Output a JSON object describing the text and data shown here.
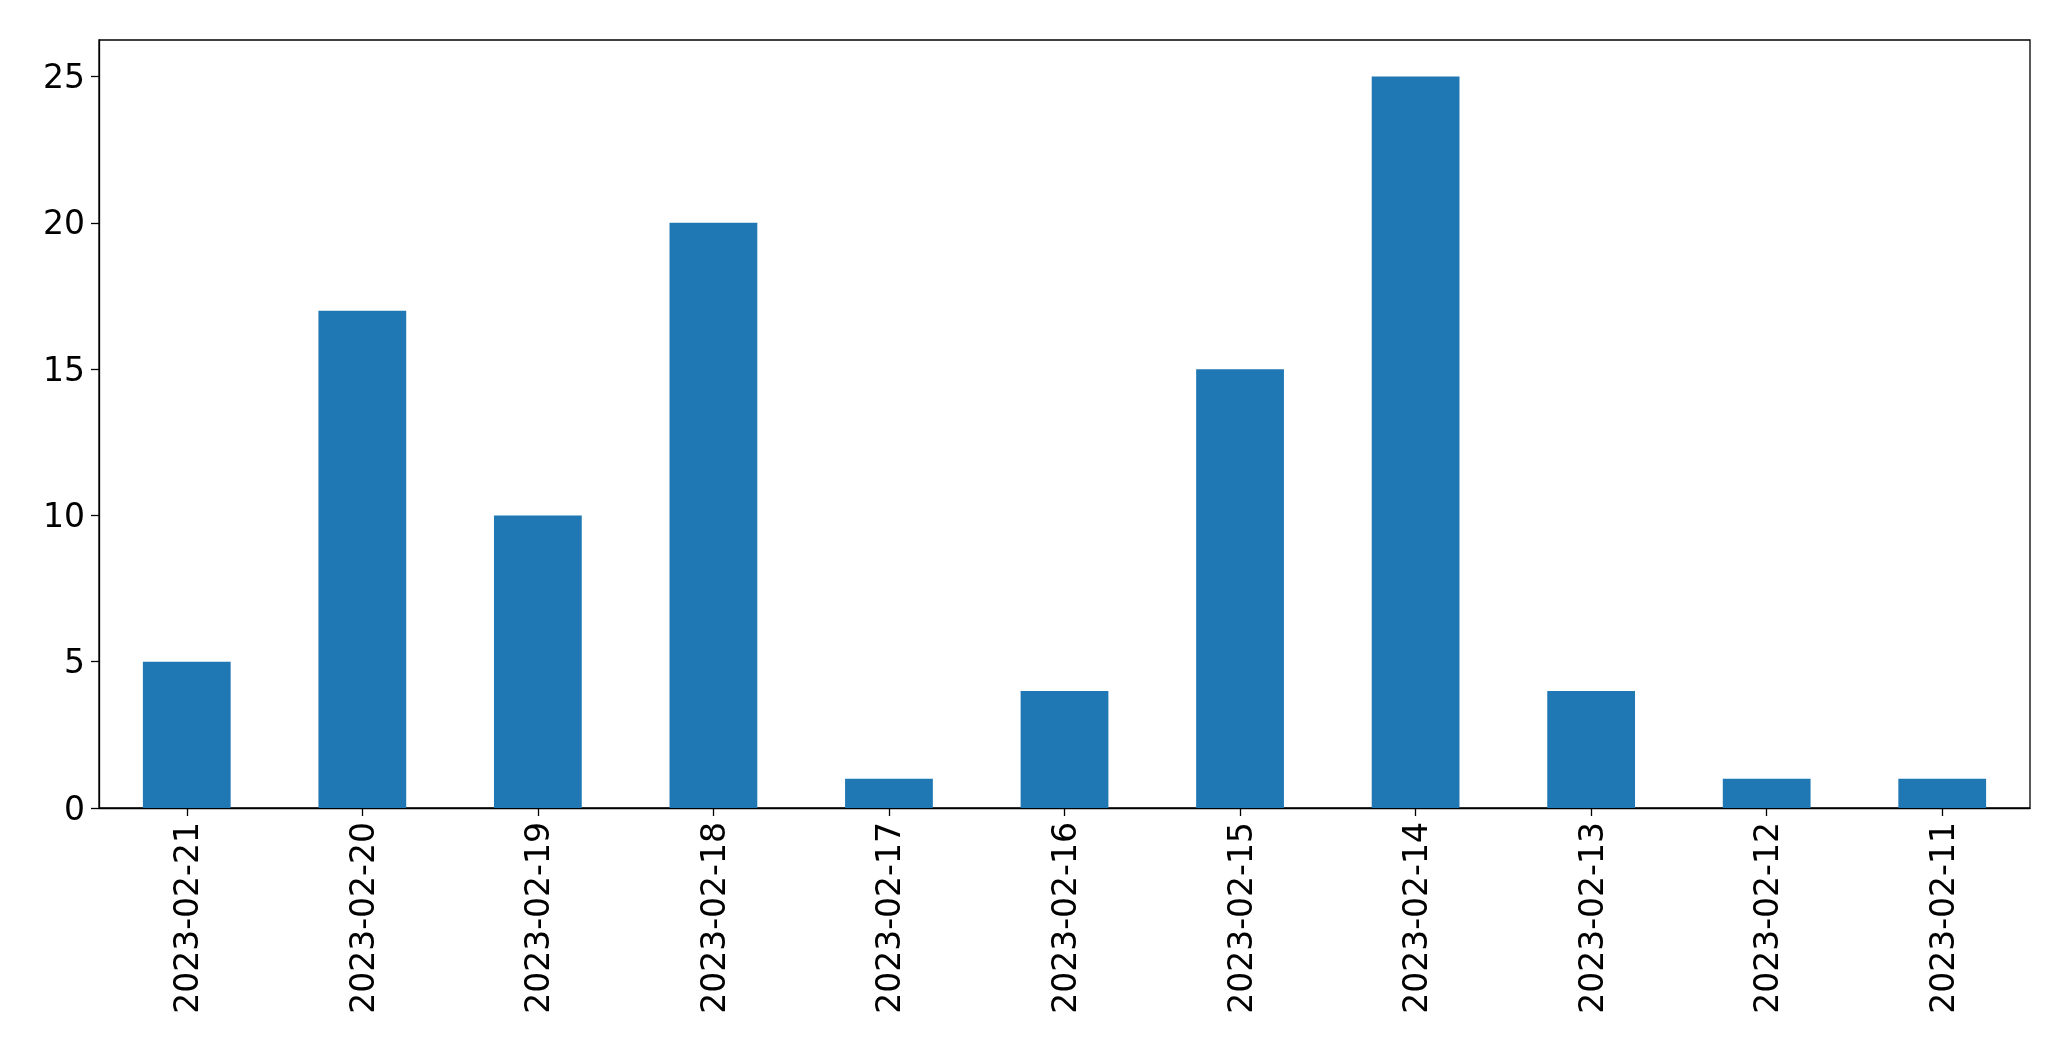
{
  "chart_data": {
    "type": "bar",
    "categories": [
      "2023-02-21",
      "2023-02-20",
      "2023-02-19",
      "2023-02-18",
      "2023-02-17",
      "2023-02-16",
      "2023-02-15",
      "2023-02-14",
      "2023-02-13",
      "2023-02-12",
      "2023-02-11"
    ],
    "values": [
      5,
      17,
      10,
      20,
      1,
      4,
      15,
      25,
      4,
      1,
      1
    ],
    "color": "#1f77b4",
    "ylim": [
      0,
      26.25
    ],
    "yticks": [
      0,
      5,
      10,
      15,
      20,
      25
    ],
    "grid": false
  }
}
